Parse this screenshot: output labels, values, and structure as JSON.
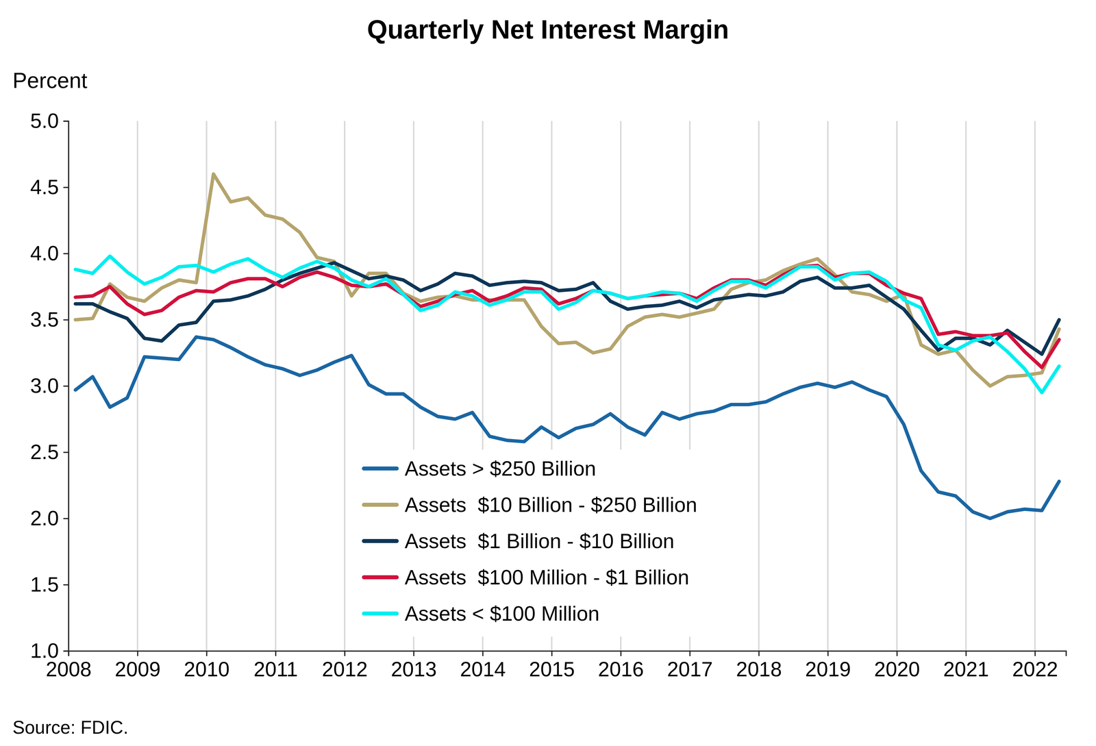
{
  "chart_data": {
    "type": "line",
    "title": "Quarterly Net Interest Margin",
    "y_label": "Percent",
    "source": "Source: FDIC.",
    "grid": true,
    "legend": "bottom",
    "xlim": [
      2008,
      2022.45
    ],
    "xticks": [
      2008,
      2009,
      2010,
      2011,
      2012,
      2013,
      2014,
      2015,
      2016,
      2017,
      2018,
      2019,
      2020,
      2021,
      2022
    ],
    "ylim": [
      1.0,
      5.0
    ],
    "yticks": [
      {
        "value": 1.0,
        "label": "1.0"
      },
      {
        "value": 1.5,
        "label": "1.5"
      },
      {
        "value": 2.0,
        "label": "2.0"
      },
      {
        "value": 2.5,
        "label": "2.5"
      },
      {
        "value": 3.0,
        "label": "3.0"
      },
      {
        "value": 3.5,
        "label": "3.5"
      },
      {
        "value": 4.0,
        "label": "4.0"
      },
      {
        "value": 4.5,
        "label": "4.5"
      },
      {
        "value": 5.0,
        "label": "5.0"
      }
    ],
    "x": [
      2008.1,
      2008.35,
      2008.6,
      2008.85,
      2009.1,
      2009.35,
      2009.6,
      2009.85,
      2010.1,
      2010.35,
      2010.6,
      2010.85,
      2011.1,
      2011.35,
      2011.6,
      2011.85,
      2012.1,
      2012.35,
      2012.6,
      2012.85,
      2013.1,
      2013.35,
      2013.6,
      2013.85,
      2014.1,
      2014.35,
      2014.6,
      2014.85,
      2015.1,
      2015.35,
      2015.6,
      2015.85,
      2016.1,
      2016.35,
      2016.6,
      2016.85,
      2017.1,
      2017.35,
      2017.6,
      2017.85,
      2018.1,
      2018.35,
      2018.6,
      2018.85,
      2019.1,
      2019.35,
      2019.6,
      2019.85,
      2020.1,
      2020.35,
      2020.6,
      2020.85,
      2021.1,
      2021.35,
      2021.6,
      2021.85,
      2022.1,
      2022.35
    ],
    "series": [
      {
        "name": "Assets > $250 Billion",
        "color": "#1a66a3",
        "values": [
          2.97,
          3.07,
          2.84,
          2.91,
          3.22,
          3.21,
          3.2,
          3.37,
          3.35,
          3.29,
          3.22,
          3.16,
          3.13,
          3.08,
          3.12,
          3.18,
          3.23,
          3.01,
          2.94,
          2.94,
          2.84,
          2.77,
          2.75,
          2.8,
          2.62,
          2.59,
          2.58,
          2.69,
          2.61,
          2.68,
          2.71,
          2.79,
          2.69,
          2.63,
          2.8,
          2.75,
          2.79,
          2.81,
          2.86,
          2.86,
          2.88,
          2.94,
          2.99,
          3.02,
          2.99,
          3.03,
          2.97,
          2.92,
          2.71,
          2.36,
          2.2,
          2.17,
          2.05,
          2.0,
          2.05,
          2.07,
          2.06,
          2.28
        ]
      },
      {
        "name": "Assets  $10 Billion - $250 Billion",
        "color": "#b5a46c",
        "values": [
          3.5,
          3.51,
          3.77,
          3.67,
          3.64,
          3.74,
          3.8,
          3.78,
          4.6,
          4.39,
          4.42,
          4.29,
          4.26,
          4.16,
          3.97,
          3.94,
          3.68,
          3.85,
          3.85,
          3.7,
          3.64,
          3.67,
          3.68,
          3.65,
          3.65,
          3.65,
          3.65,
          3.45,
          3.32,
          3.33,
          3.25,
          3.28,
          3.45,
          3.52,
          3.54,
          3.52,
          3.55,
          3.58,
          3.73,
          3.78,
          3.8,
          3.87,
          3.92,
          3.96,
          3.84,
          3.71,
          3.69,
          3.64,
          3.69,
          3.31,
          3.24,
          3.27,
          3.12,
          3.0,
          3.07,
          3.08,
          3.1,
          3.43
        ]
      },
      {
        "name": "Assets  $1 Billion - $10 Billion",
        "color": "#0d3556",
        "values": [
          3.62,
          3.62,
          3.56,
          3.51,
          3.36,
          3.34,
          3.46,
          3.48,
          3.64,
          3.65,
          3.68,
          3.73,
          3.8,
          3.85,
          3.89,
          3.93,
          3.87,
          3.81,
          3.83,
          3.8,
          3.72,
          3.77,
          3.85,
          3.83,
          3.76,
          3.78,
          3.79,
          3.78,
          3.72,
          3.73,
          3.78,
          3.64,
          3.58,
          3.6,
          3.61,
          3.64,
          3.59,
          3.65,
          3.67,
          3.69,
          3.68,
          3.71,
          3.79,
          3.82,
          3.74,
          3.74,
          3.76,
          3.67,
          3.58,
          3.42,
          3.27,
          3.36,
          3.36,
          3.31,
          3.42,
          3.33,
          3.24,
          3.5
        ]
      },
      {
        "name": "Assets  $100 Million - $1 Billion",
        "color": "#d2103c",
        "values": [
          3.67,
          3.68,
          3.75,
          3.62,
          3.54,
          3.57,
          3.67,
          3.72,
          3.71,
          3.78,
          3.81,
          3.81,
          3.75,
          3.82,
          3.86,
          3.82,
          3.76,
          3.75,
          3.77,
          3.69,
          3.6,
          3.64,
          3.69,
          3.72,
          3.64,
          3.68,
          3.74,
          3.73,
          3.62,
          3.66,
          3.72,
          3.7,
          3.66,
          3.68,
          3.69,
          3.7,
          3.66,
          3.74,
          3.8,
          3.8,
          3.76,
          3.84,
          3.9,
          3.91,
          3.82,
          3.85,
          3.85,
          3.76,
          3.7,
          3.66,
          3.39,
          3.41,
          3.38,
          3.38,
          3.4,
          3.26,
          3.14,
          3.35
        ]
      },
      {
        "name": "Assets < $100 Million",
        "color": "#00eef0",
        "values": [
          3.88,
          3.85,
          3.98,
          3.86,
          3.77,
          3.82,
          3.9,
          3.91,
          3.86,
          3.92,
          3.96,
          3.88,
          3.82,
          3.89,
          3.94,
          3.89,
          3.8,
          3.75,
          3.81,
          3.69,
          3.57,
          3.61,
          3.71,
          3.68,
          3.61,
          3.65,
          3.71,
          3.71,
          3.58,
          3.63,
          3.72,
          3.7,
          3.66,
          3.68,
          3.71,
          3.7,
          3.64,
          3.72,
          3.79,
          3.79,
          3.74,
          3.82,
          3.9,
          3.9,
          3.8,
          3.85,
          3.86,
          3.79,
          3.65,
          3.59,
          3.31,
          3.27,
          3.34,
          3.37,
          3.26,
          3.13,
          2.95,
          3.15
        ]
      }
    ]
  }
}
